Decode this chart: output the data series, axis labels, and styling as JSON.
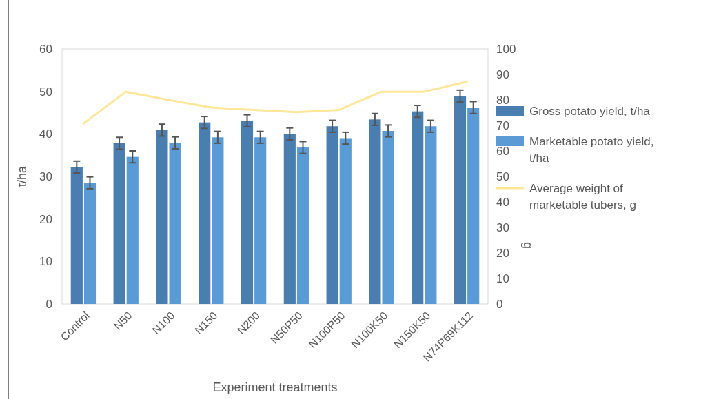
{
  "chart_data": {
    "type": "bar",
    "xlabel": "Experiment treatments",
    "ylabel": "t/ha",
    "y2label": "g",
    "categories": [
      "Control",
      "N50",
      "N100",
      "N150",
      "N200",
      "N50P50",
      "N100P50",
      "N100K50",
      "N150K50",
      "N74P69K112"
    ],
    "series": [
      {
        "name": "Gross potato yield, t/ha",
        "color": "#4a7eb0",
        "values": [
          32.2,
          37.8,
          40.9,
          42.7,
          43.1,
          40.0,
          41.8,
          43.4,
          45.3,
          48.9
        ],
        "errors": [
          1.4,
          1.4,
          1.4,
          1.4,
          1.4,
          1.4,
          1.4,
          1.4,
          1.4,
          1.4
        ]
      },
      {
        "name": "Marketable potato yield, t/ha",
        "color": "#5b9bd5",
        "values": [
          28.5,
          34.6,
          37.9,
          39.2,
          39.2,
          36.8,
          39.0,
          40.7,
          41.8,
          46.2
        ],
        "errors": [
          1.4,
          1.4,
          1.4,
          1.4,
          1.4,
          1.4,
          1.4,
          1.4,
          1.4,
          1.4
        ]
      },
      {
        "name": "Average weight of marketable tubers, g",
        "type": "line",
        "axis": "y2",
        "color": "#ffe699",
        "values": [
          70.7,
          83.2,
          80,
          77.0,
          76.1,
          75.2,
          76.1,
          83.2,
          83.2,
          87.1
        ]
      }
    ],
    "ylim": [
      0,
      60
    ],
    "yticks": [
      0,
      10,
      20,
      30,
      40,
      50,
      60
    ],
    "y2lim": [
      0,
      100
    ],
    "y2ticks": [
      0,
      10,
      20,
      30,
      40,
      50,
      60,
      70,
      80,
      90,
      100
    ],
    "grid": false,
    "legend": "right"
  }
}
